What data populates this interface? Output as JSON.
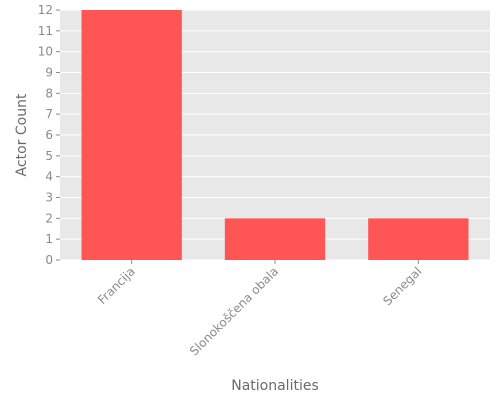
{
  "chart_data": {
    "type": "bar",
    "categories": [
      "Francija",
      "Slonokoščena obala",
      "Senegal"
    ],
    "values": [
      12,
      2,
      2
    ],
    "title": "",
    "xlabel": "Nationalities",
    "ylabel": "Actor Count",
    "ylim": [
      0,
      12
    ],
    "yticks": [
      0,
      1,
      2,
      3,
      4,
      5,
      6,
      7,
      8,
      9,
      10,
      11,
      12
    ],
    "grid": true,
    "legend": "none",
    "bar_color": "#ff5555",
    "background_color": "#e8e8e8",
    "grid_color": "#ffffff"
  }
}
